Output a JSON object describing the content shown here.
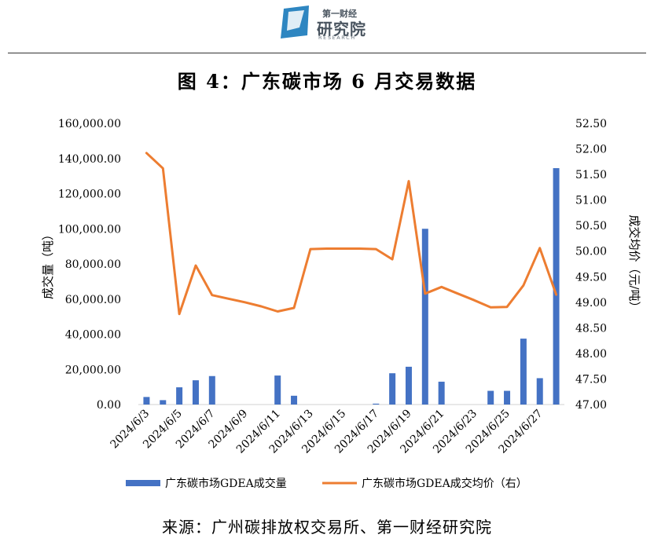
{
  "logo": {
    "top_text": "第一财经",
    "main_text": "研究院",
    "sub_text": "RESEARCH"
  },
  "title": "图 4：广东碳市场 6 月交易数据",
  "source": "来源：广州碳排放权交易所、第一财经研究院",
  "colors": {
    "bar": "#4472C4",
    "line": "#ED7D31",
    "logo_blue": "#2E86C1"
  },
  "chart_data": {
    "type": "bar",
    "categories": [
      "2024/6/3",
      "2024/6/4",
      "2024/6/5",
      "2024/6/6",
      "2024/6/7",
      "2024/6/8",
      "2024/6/9",
      "2024/6/10",
      "2024/6/11",
      "2024/6/12",
      "2024/6/13",
      "2024/6/14",
      "2024/6/15",
      "2024/6/16",
      "2024/6/17",
      "2024/6/18",
      "2024/6/19",
      "2024/6/20",
      "2024/6/21",
      "2024/6/22",
      "2024/6/23",
      "2024/6/24",
      "2024/6/25",
      "2024/6/26",
      "2024/6/27",
      "2024/6/28"
    ],
    "x_tick_labels": [
      "2024/6/3",
      "2024/6/5",
      "2024/6/7",
      "2024/6/9",
      "2024/6/11",
      "2024/6/13",
      "2024/6/15",
      "2024/6/17",
      "2024/6/19",
      "2024/6/21",
      "2024/6/23",
      "2024/6/25",
      "2024/6/27"
    ],
    "series": [
      {
        "name": "广东碳市场GDEA成交量",
        "type": "bar",
        "axis": "left",
        "values": [
          4300,
          2500,
          9800,
          13800,
          16200,
          0,
          0,
          0,
          16500,
          5000,
          0,
          0,
          0,
          0,
          500,
          17800,
          21500,
          100000,
          13000,
          0,
          0,
          7800,
          7800,
          37500,
          15000,
          134500
        ]
      },
      {
        "name": "广东碳市场GDEA成交均价（右）",
        "type": "line",
        "axis": "right",
        "values": [
          51.92,
          51.62,
          48.77,
          49.72,
          49.14,
          49.07,
          49.0,
          48.92,
          48.82,
          48.89,
          50.04,
          50.05,
          50.05,
          50.05,
          50.04,
          49.84,
          51.37,
          49.17,
          49.3,
          49.17,
          49.04,
          48.9,
          48.91,
          49.33,
          50.06,
          49.15
        ]
      }
    ],
    "ylabel_left": "成交量（吨）",
    "ylabel_right": "成交均价（元/吨）",
    "ylim_left": [
      0,
      160000
    ],
    "ylim_right": [
      47,
      52.5
    ],
    "yticks_left": [
      "0.00",
      "20,000.00",
      "40,000.00",
      "60,000.00",
      "80,000.00",
      "100,000.00",
      "120,000.00",
      "140,000.00",
      "160,000.00"
    ],
    "yticks_right": [
      "47.00",
      "47.50",
      "48.00",
      "48.50",
      "49.00",
      "49.50",
      "50.00",
      "50.50",
      "51.00",
      "51.50",
      "52.00",
      "52.50"
    ],
    "grid": false,
    "legend_position": "bottom"
  }
}
